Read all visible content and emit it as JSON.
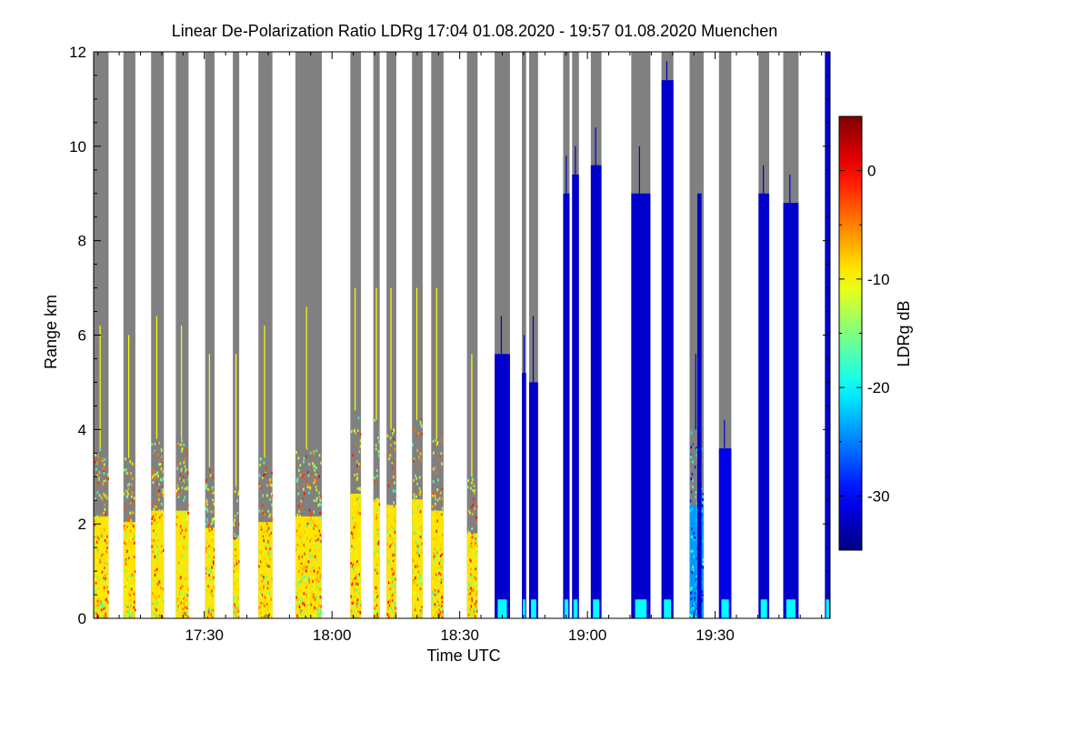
{
  "chart_data": {
    "type": "heatmap",
    "title": "Linear De-Polarization Ratio LDRg   17:04 01.08.2020 - 19:57 01.08.2020 Muenchen",
    "xlabel": "Time UTC",
    "ylabel": "Range km",
    "x_range_minutes_utc": [
      1024,
      1197
    ],
    "x_ticks": [
      {
        "minute": 1050,
        "label": "17:30"
      },
      {
        "minute": 1080,
        "label": "18:00"
      },
      {
        "minute": 1110,
        "label": "18:30"
      },
      {
        "minute": 1140,
        "label": "19:00"
      },
      {
        "minute": 1170,
        "label": "19:30"
      }
    ],
    "y_range_km": [
      0,
      12
    ],
    "y_ticks": [
      {
        "value": 0,
        "label": "0"
      },
      {
        "value": 2,
        "label": "2"
      },
      {
        "value": 4,
        "label": "4"
      },
      {
        "value": 6,
        "label": "6"
      },
      {
        "value": 8,
        "label": "8"
      },
      {
        "value": 10,
        "label": "10"
      },
      {
        "value": 12,
        "label": "12"
      }
    ],
    "colorbar": {
      "label": "LDRg dB",
      "range_db": [
        -35,
        5
      ],
      "colormap": "jet",
      "ticks": [
        {
          "value": 0,
          "label": "0"
        },
        {
          "value": -10,
          "label": "-10"
        },
        {
          "value": -20,
          "label": "-20"
        },
        {
          "value": -30,
          "label": "-30"
        }
      ]
    },
    "no_signal_color": "#808080",
    "background_color": "#ffffff",
    "measurement_blocks": [
      {
        "start_min": 1024.0,
        "end_min": 1027.5,
        "low_ldr_top_km": 3.6,
        "clutter_top_km": 6.2,
        "ldr_db": -9,
        "regime": "aerosol"
      },
      {
        "start_min": 1031.0,
        "end_min": 1033.8,
        "low_ldr_top_km": 3.4,
        "clutter_top_km": 6.0,
        "ldr_db": -9,
        "regime": "aerosol"
      },
      {
        "start_min": 1037.5,
        "end_min": 1040.5,
        "low_ldr_top_km": 3.8,
        "clutter_top_km": 6.4,
        "ldr_db": -9,
        "regime": "aerosol"
      },
      {
        "start_min": 1043.3,
        "end_min": 1046.3,
        "low_ldr_top_km": 3.8,
        "clutter_top_km": 6.2,
        "ldr_db": -9,
        "regime": "aerosol"
      },
      {
        "start_min": 1050.2,
        "end_min": 1052.4,
        "low_ldr_top_km": 3.2,
        "clutter_top_km": 5.6,
        "ldr_db": -9,
        "regime": "aerosol"
      },
      {
        "start_min": 1056.7,
        "end_min": 1058.2,
        "low_ldr_top_km": 2.8,
        "clutter_top_km": 5.6,
        "ldr_db": -9,
        "regime": "aerosol"
      },
      {
        "start_min": 1062.7,
        "end_min": 1066.0,
        "low_ldr_top_km": 3.4,
        "clutter_top_km": 6.2,
        "ldr_db": -9,
        "regime": "aerosol"
      },
      {
        "start_min": 1071.4,
        "end_min": 1077.6,
        "low_ldr_top_km": 3.6,
        "clutter_top_km": 6.6,
        "ldr_db": -9,
        "regime": "aerosol"
      },
      {
        "start_min": 1084.3,
        "end_min": 1086.8,
        "low_ldr_top_km": 4.4,
        "clutter_top_km": 7.0,
        "ldr_db": -9,
        "regime": "aerosol"
      },
      {
        "start_min": 1089.7,
        "end_min": 1091.2,
        "low_ldr_top_km": 4.2,
        "clutter_top_km": 7.0,
        "ldr_db": -9,
        "regime": "aerosol"
      },
      {
        "start_min": 1092.8,
        "end_min": 1095.1,
        "low_ldr_top_km": 4.0,
        "clutter_top_km": 7.0,
        "ldr_db": -9,
        "regime": "aerosol"
      },
      {
        "start_min": 1098.8,
        "end_min": 1101.3,
        "low_ldr_top_km": 4.2,
        "clutter_top_km": 7.0,
        "ldr_db": -9,
        "regime": "aerosol"
      },
      {
        "start_min": 1103.3,
        "end_min": 1106.2,
        "low_ldr_top_km": 3.8,
        "clutter_top_km": 7.0,
        "ldr_db": -9,
        "regime": "aerosol"
      },
      {
        "start_min": 1111.7,
        "end_min": 1114.2,
        "low_ldr_top_km": 3.0,
        "clutter_top_km": 5.6,
        "ldr_db": -9,
        "regime": "aerosol"
      },
      {
        "start_min": 1118.2,
        "end_min": 1121.8,
        "low_ldr_top_km": 5.6,
        "clutter_top_km": 6.4,
        "ldr_db": -32,
        "regime": "cloud"
      },
      {
        "start_min": 1124.6,
        "end_min": 1125.6,
        "low_ldr_top_km": 5.2,
        "clutter_top_km": 6.0,
        "ldr_db": -32,
        "regime": "cloud"
      },
      {
        "start_min": 1126.3,
        "end_min": 1128.4,
        "low_ldr_top_km": 5.0,
        "clutter_top_km": 6.4,
        "ldr_db": -32,
        "regime": "cloud"
      },
      {
        "start_min": 1134.3,
        "end_min": 1135.8,
        "low_ldr_top_km": 9.0,
        "clutter_top_km": 9.8,
        "ldr_db": -32,
        "regime": "cloud"
      },
      {
        "start_min": 1136.4,
        "end_min": 1138.0,
        "low_ldr_top_km": 9.4,
        "clutter_top_km": 10.0,
        "ldr_db": -32,
        "regime": "cloud"
      },
      {
        "start_min": 1140.8,
        "end_min": 1143.3,
        "low_ldr_top_km": 9.6,
        "clutter_top_km": 10.4,
        "ldr_db": -32,
        "regime": "cloud"
      },
      {
        "start_min": 1150.3,
        "end_min": 1154.8,
        "low_ldr_top_km": 9.0,
        "clutter_top_km": 10.0,
        "ldr_db": -32,
        "regime": "cloud"
      },
      {
        "start_min": 1157.4,
        "end_min": 1160.2,
        "low_ldr_top_km": 11.4,
        "clutter_top_km": 11.8,
        "ldr_db": -32,
        "regime": "cloud"
      },
      {
        "start_min": 1164.0,
        "end_min": 1167.3,
        "low_ldr_top_km": 4.0,
        "clutter_top_km": 5.6,
        "ldr_db": -24,
        "regime": "mixed"
      },
      {
        "start_min": 1170.9,
        "end_min": 1173.8,
        "low_ldr_top_km": 3.6,
        "clutter_top_km": 4.2,
        "ldr_db": -31,
        "regime": "cloud"
      },
      {
        "start_min": 1180.2,
        "end_min": 1182.7,
        "low_ldr_top_km": 9.0,
        "clutter_top_km": 9.6,
        "ldr_db": -32,
        "regime": "cloud"
      },
      {
        "start_min": 1186.0,
        "end_min": 1189.6,
        "low_ldr_top_km": 8.8,
        "clutter_top_km": 9.4,
        "ldr_db": -32,
        "regime": "cloud"
      },
      {
        "start_min": 1195.8,
        "end_min": 1197.0,
        "low_ldr_top_km": 12.0,
        "clutter_top_km": 12.0,
        "ldr_db": -32,
        "regime": "cloud"
      }
    ]
  }
}
